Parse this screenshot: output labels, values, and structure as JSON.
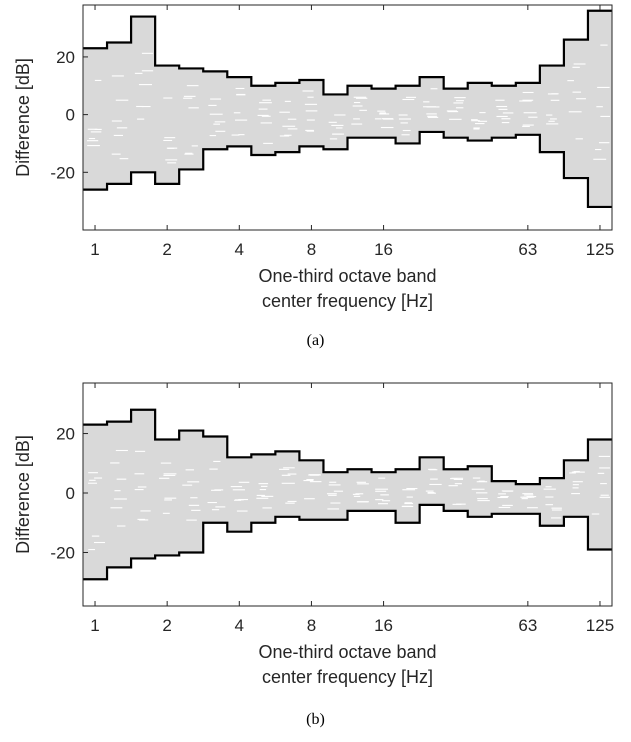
{
  "colors": {
    "envelope": "#000000",
    "spread": "#d9d9d9",
    "spread_gap": "#ffffff",
    "text": "#262626"
  },
  "chart_data": [
    {
      "type": "area",
      "caption": "(a)",
      "xlabel_line1": "One-third octave band",
      "xlabel_line2": "center frequency [Hz]",
      "ylabel": "Difference [dB]",
      "x_ticks": [
        "1",
        "2",
        "4",
        "8",
        "16",
        "63",
        "125"
      ],
      "y_ticks": [
        "20",
        "0",
        "-20"
      ],
      "ylim": [
        -40,
        38
      ],
      "x_scale": "log2",
      "bands": [
        "1",
        "1.25",
        "1.6",
        "2",
        "2.5",
        "3.15",
        "4",
        "5",
        "6.3",
        "8",
        "10",
        "12.5",
        "16",
        "20",
        "25",
        "31.5",
        "40",
        "50",
        "63",
        "80",
        "100",
        "125"
      ],
      "series": [
        {
          "name": "upper",
          "values": [
            23,
            25,
            34,
            17,
            16,
            15,
            13,
            10,
            11,
            12,
            7,
            10,
            9,
            10,
            13,
            9,
            11,
            10,
            11,
            17,
            26,
            36
          ]
        },
        {
          "name": "lower",
          "values": [
            -26,
            -24,
            -20,
            -24,
            -19,
            -12,
            -11,
            -14,
            -13,
            -11,
            -12,
            -8,
            -8,
            -10,
            -6,
            -8,
            -9,
            -8,
            -7,
            -13,
            -22,
            -32
          ]
        }
      ]
    },
    {
      "type": "area",
      "caption": "(b)",
      "xlabel_line1": "One-third octave band",
      "xlabel_line2": "center frequency [Hz]",
      "ylabel": "Difference [dB]",
      "x_ticks": [
        "1",
        "2",
        "4",
        "8",
        "16",
        "63",
        "125"
      ],
      "y_ticks": [
        "20",
        "0",
        "-20"
      ],
      "ylim": [
        -38,
        37
      ],
      "x_scale": "log2",
      "bands": [
        "1",
        "1.25",
        "1.6",
        "2",
        "2.5",
        "3.15",
        "4",
        "5",
        "6.3",
        "8",
        "10",
        "12.5",
        "16",
        "20",
        "25",
        "31.5",
        "40",
        "50",
        "63",
        "80",
        "100",
        "125"
      ],
      "series": [
        {
          "name": "upper",
          "values": [
            23,
            24,
            28,
            18,
            21,
            19,
            12,
            13,
            14,
            11,
            7,
            8,
            7,
            8,
            12,
            8,
            9,
            4,
            3,
            5,
            11,
            18
          ]
        },
        {
          "name": "lower",
          "values": [
            -29,
            -25,
            -22,
            -21,
            -20,
            -10,
            -13,
            -10,
            -8,
            -9,
            -9,
            -6,
            -6,
            -10,
            -4,
            -6,
            -8,
            -7,
            -7,
            -11,
            -8,
            -19
          ]
        }
      ]
    }
  ]
}
